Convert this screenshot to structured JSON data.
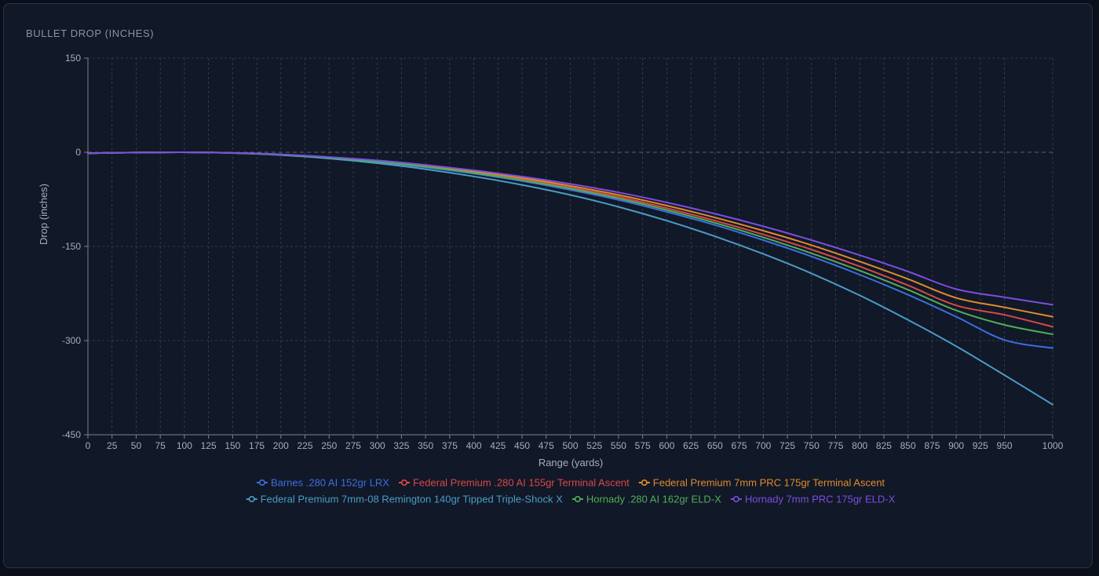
{
  "card": {
    "title": "BULLET DROP (INCHES)"
  },
  "colors": {
    "background": "#111827",
    "grid": "#3a4657",
    "axis": "#7b8494",
    "zero_line": "#5a6576"
  },
  "chart_data": {
    "type": "line",
    "title": "BULLET DROP (INCHES)",
    "xlabel": "Range (yards)",
    "ylabel": "Drop (inches)",
    "xlim": [
      0,
      1000
    ],
    "ylim": [
      -450,
      150
    ],
    "x_ticks": [
      0,
      25,
      50,
      75,
      100,
      125,
      150,
      175,
      200,
      225,
      250,
      275,
      300,
      325,
      350,
      375,
      400,
      425,
      450,
      475,
      500,
      525,
      550,
      575,
      600,
      625,
      650,
      675,
      700,
      725,
      750,
      775,
      800,
      825,
      850,
      875,
      900,
      925,
      950,
      1000
    ],
    "y_ticks": [
      150,
      0,
      -150,
      -300,
      -450
    ],
    "grid": true,
    "legend_position": "bottom",
    "x": [
      0,
      100,
      200,
      300,
      400,
      500,
      600,
      700,
      800,
      900,
      1000
    ],
    "series": [
      {
        "name": "Barnes .280 AI 152gr LRX",
        "color": "#3b6fe0",
        "values": [
          -1.5,
          0,
          -4,
          -17,
          -38,
          -69,
          -109,
          -162,
          -228,
          -308,
          -312
        ]
      },
      {
        "name": "Federal Premium .280 AI 155gr Terminal Ascent",
        "color": "#d94848",
        "values": [
          -1.5,
          0,
          -3.8,
          -16,
          -36,
          -65,
          -103,
          -153,
          -215,
          -290,
          -278
        ]
      },
      {
        "name": "Federal Premium 7mm PRC 175gr Terminal Ascent",
        "color": "#e08a2e",
        "values": [
          -1.5,
          0,
          -3.6,
          -15,
          -34,
          -62,
          -98,
          -146,
          -205,
          -276,
          -262
        ]
      },
      {
        "name": "Federal Premium 7mm-08 Remington 140gr Tipped Triple-Shock X",
        "color": "#4a9cc7",
        "values": [
          -1.5,
          0,
          -4.5,
          -19,
          -43,
          -79,
          -127,
          -190,
          -268,
          -363,
          -402
        ]
      },
      {
        "name": "Hornady .280 AI 162gr ELD-X",
        "color": "#4fae5a",
        "values": [
          -1.5,
          0,
          -3.9,
          -16.5,
          -37,
          -67,
          -106,
          -158,
          -222,
          -300,
          -290
        ]
      },
      {
        "name": "Hornady 7mm PRC 175gr ELD-X",
        "color": "#7b4ee0",
        "values": [
          -1.5,
          0,
          -3.4,
          -14,
          -32,
          -58,
          -92,
          -137,
          -192,
          -258,
          -243
        ]
      }
    ],
    "curve_points": {
      "x": [
        0,
        50,
        100,
        150,
        200,
        250,
        300,
        350,
        400,
        450,
        500,
        550,
        600,
        650,
        700,
        750,
        800,
        850,
        900,
        950,
        1000
      ],
      "series_values": [
        [
          -1.5,
          -0.4,
          0,
          -1.2,
          -4,
          -9,
          -15.5,
          -24,
          -34,
          -46,
          -60,
          -76,
          -95,
          -116,
          -140,
          -166,
          -195,
          -227,
          -262,
          -299,
          -312
        ],
        [
          -1.5,
          -0.4,
          0,
          -1.1,
          -3.8,
          -8.5,
          -14.5,
          -22.5,
          -32,
          -43,
          -56,
          -71,
          -89,
          -109,
          -131,
          -155,
          -182,
          -212,
          -244,
          -259,
          -278
        ],
        [
          -1.5,
          -0.4,
          0,
          -1.1,
          -3.6,
          -8,
          -13.8,
          -21.5,
          -30.5,
          -41,
          -53.5,
          -68,
          -85,
          -104,
          -125,
          -148,
          -174,
          -202,
          -232,
          -247,
          -262
        ],
        [
          -1.5,
          -0.4,
          0,
          -1.3,
          -4.5,
          -10,
          -17.5,
          -27,
          -38.5,
          -52,
          -68,
          -87,
          -109,
          -134,
          -162,
          -193,
          -228,
          -267,
          -309,
          -355,
          -402
        ],
        [
          -1.5,
          -0.4,
          0,
          -1.15,
          -3.9,
          -8.7,
          -15,
          -23.2,
          -33,
          -44.5,
          -58,
          -73.5,
          -92,
          -112.5,
          -135.5,
          -161,
          -188.5,
          -219,
          -252,
          -275,
          -290
        ],
        [
          -1.5,
          -0.4,
          0,
          -1.0,
          -3.4,
          -7.6,
          -13,
          -20.2,
          -28.8,
          -38.8,
          -50.5,
          -64,
          -80,
          -98,
          -118,
          -140,
          -164,
          -190,
          -218,
          -231,
          -243
        ]
      ]
    }
  }
}
